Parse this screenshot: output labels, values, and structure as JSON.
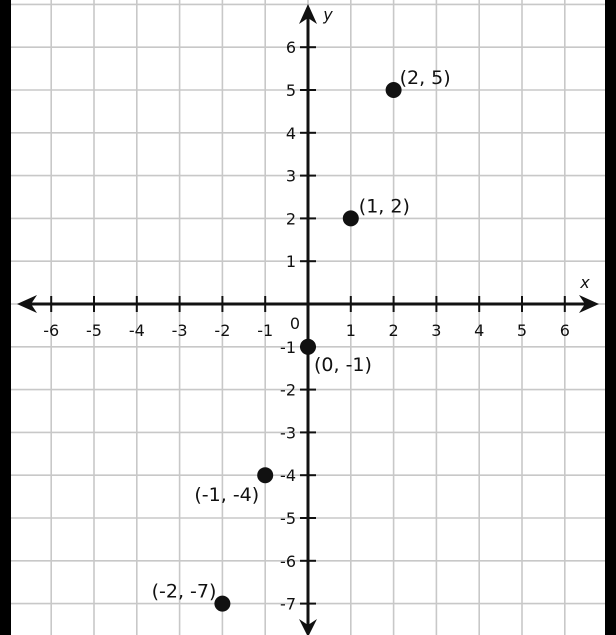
{
  "chart_data": {
    "type": "scatter",
    "xlabel": "x",
    "ylabel": "y",
    "xlim": [
      -7,
      7
    ],
    "ylim": [
      -7.5,
      7
    ],
    "grid": true,
    "origin_label": "0",
    "x_ticks": [
      -6,
      -5,
      -4,
      -3,
      -2,
      -1,
      1,
      2,
      3,
      4,
      5,
      6
    ],
    "y_ticks": [
      -7,
      -6,
      -5,
      -4,
      -3,
      -2,
      -1,
      1,
      2,
      3,
      4,
      5,
      6
    ],
    "points": [
      {
        "x": 2,
        "y": 5,
        "label": "(2, 5)"
      },
      {
        "x": 1,
        "y": 2,
        "label": "(1, 2)"
      },
      {
        "x": 0,
        "y": -1,
        "label": "(0, -1)"
      },
      {
        "x": -1,
        "y": -4,
        "label": "(-1, -4)"
      },
      {
        "x": -2,
        "y": -7,
        "label": "(-2, -7)"
      }
    ],
    "colors": {
      "grid": "#c8c8c8",
      "axis": "#111111",
      "point": "#111111",
      "frame": "#000000"
    }
  }
}
